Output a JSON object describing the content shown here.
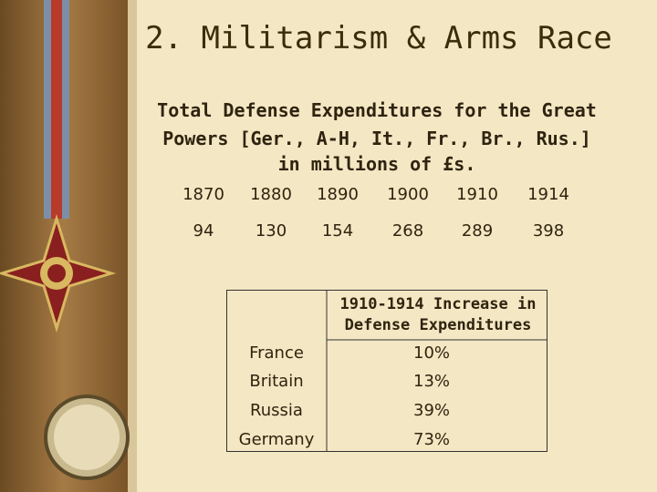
{
  "header": {
    "title": "2. Militarism & Arms Race"
  },
  "subtitle": [
    "Total Defense Expenditures for the Great",
    "Powers [Ger., A-H, It., Fr., Br., Rus.]",
    "in millions of £s."
  ],
  "expenditures": {
    "years": [
      "1870",
      "1880",
      "1890",
      "1900",
      "1910",
      "1914"
    ],
    "values": [
      "94",
      "130",
      "154",
      "268",
      "289",
      "398"
    ]
  },
  "increase_table": {
    "header": "1910-1914 Increase in Defense Expenditures",
    "rows": [
      [
        "France",
        "10%"
      ],
      [
        "Britain",
        "13%"
      ],
      [
        "Russia",
        "39%"
      ],
      [
        "Germany",
        "73%"
      ]
    ]
  }
}
